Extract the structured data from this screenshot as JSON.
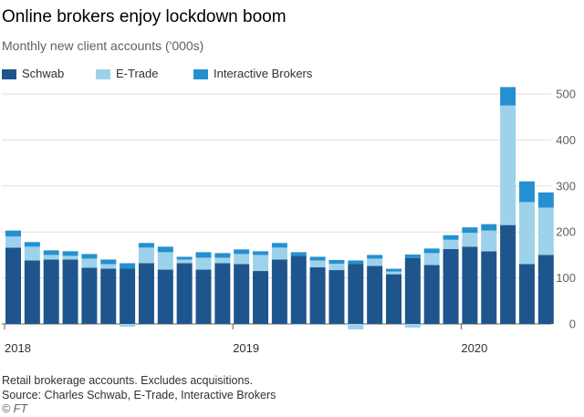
{
  "header": {
    "title": "Online brokers enjoy lockdown boom",
    "subtitle": "Monthly new client accounts ('000s)"
  },
  "legend": [
    {
      "label": "Schwab",
      "color": "#1e558c"
    },
    {
      "label": "E-Trade",
      "color": "#9dd2ea"
    },
    {
      "label": "Interactive Brokers",
      "color": "#2590d0"
    }
  ],
  "footer": {
    "note": "Retail brokerage accounts. Excludes acquisitions.",
    "source": "Source: Charles Schwab, E-Trade, Interactive Brokers",
    "credit": "© FT"
  },
  "chart_data": {
    "type": "bar",
    "stacked": true,
    "title": "Online brokers enjoy lockdown boom",
    "subtitle": "Monthly new client accounts ('000s)",
    "xlabel": "",
    "ylabel": "",
    "ylim": [
      0,
      500
    ],
    "yticks": [
      0,
      100,
      200,
      300,
      400,
      500
    ],
    "y_axis_side": "right",
    "grid": true,
    "legend_position": "top-left",
    "x_tick_labels": [
      {
        "label": "2018",
        "index": 0
      },
      {
        "label": "2019",
        "index": 12
      },
      {
        "label": "2020",
        "index": 24
      }
    ],
    "categories": [
      "2018-01",
      "2018-02",
      "2018-03",
      "2018-04",
      "2018-05",
      "2018-06",
      "2018-07",
      "2018-08",
      "2018-09",
      "2018-10",
      "2018-11",
      "2018-12",
      "2019-01",
      "2019-02",
      "2019-03",
      "2019-04",
      "2019-05",
      "2019-06",
      "2019-07",
      "2019-08",
      "2019-09",
      "2019-10",
      "2019-11",
      "2019-12",
      "2020-01",
      "2020-02",
      "2020-03",
      "2020-04",
      "2020-05"
    ],
    "series": [
      {
        "name": "Schwab",
        "color": "#1e558c",
        "values": [
          166,
          138,
          140,
          140,
          122,
          120,
          120,
          132,
          118,
          132,
          118,
          132,
          130,
          115,
          140,
          148,
          123,
          117,
          130,
          126,
          108,
          143,
          128,
          163,
          168,
          158,
          215,
          130,
          150
        ]
      },
      {
        "name": "E-Trade",
        "color": "#9dd2ea",
        "values": [
          24,
          30,
          10,
          8,
          20,
          10,
          -6,
          34,
          38,
          8,
          26,
          12,
          22,
          35,
          26,
          -2,
          15,
          14,
          -12,
          16,
          6,
          -8,
          26,
          20,
          30,
          45,
          260,
          135,
          103
        ]
      },
      {
        "name": "Interactive Brokers",
        "color": "#2590d0",
        "values": [
          13,
          10,
          10,
          10,
          10,
          10,
          12,
          10,
          12,
          6,
          12,
          10,
          10,
          8,
          10,
          8,
          8,
          8,
          8,
          8,
          6,
          8,
          10,
          10,
          12,
          14,
          40,
          45,
          33
        ]
      }
    ]
  }
}
